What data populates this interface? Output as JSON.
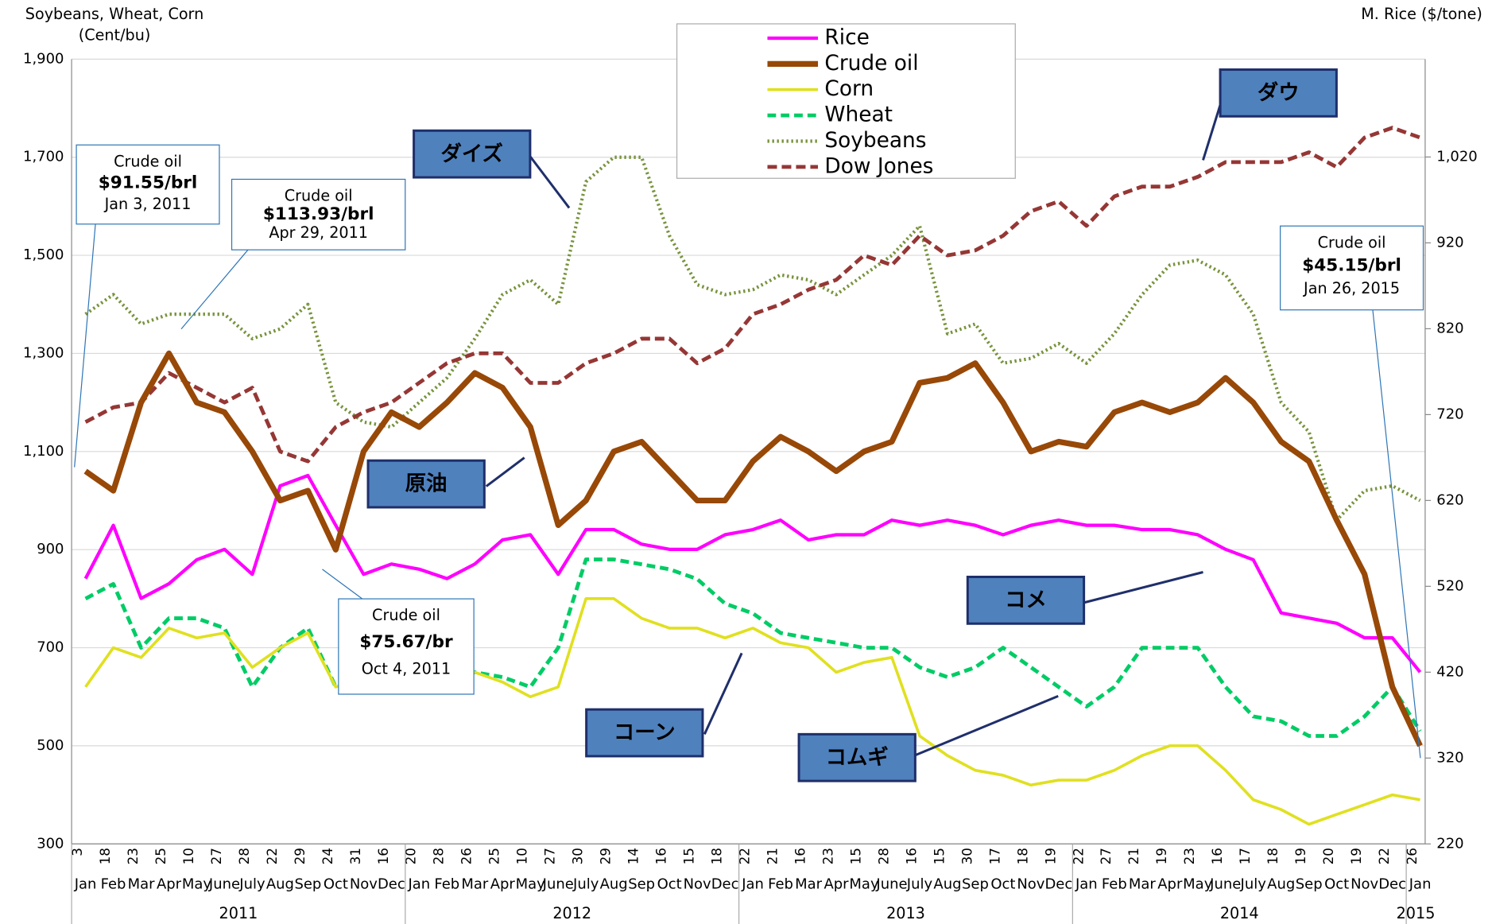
{
  "chart_data": {
    "type": "line",
    "y_label": [
      "Soybeans, Wheat, Corn",
      "(Cent/bu)"
    ],
    "y2_label": "M. Rice ($/tone)",
    "categories": [
      "Jan",
      "Feb",
      "Mar",
      "Apr",
      "May",
      "June",
      "July",
      "Aug",
      "Sep",
      "Oct",
      "Nov",
      "Dec",
      "Jan",
      "Feb",
      "Mar",
      "Apr",
      "May",
      "June",
      "July",
      "Aug",
      "Sep",
      "Oct",
      "Nov",
      "Dec",
      "Jan",
      "Feb",
      "Mar",
      "Apr",
      "May",
      "June",
      "July",
      "Aug",
      "Sep",
      "Oct",
      "Nov",
      "Dec",
      "Jan",
      "Feb",
      "Mar",
      "Apr",
      "May",
      "June",
      "July",
      "Aug",
      "Sep",
      "Oct",
      "Nov",
      "Dec",
      "Jan"
    ],
    "days": [
      "3",
      "18",
      "23",
      "25",
      "10",
      "27",
      "28",
      "22",
      "29",
      "24",
      "31",
      "16",
      "20",
      "28",
      "26",
      "25",
      "10",
      "27",
      "30",
      "29",
      "14",
      "16",
      "15",
      "18",
      "22",
      "21",
      "16",
      "23",
      "15",
      "28",
      "16",
      "15",
      "30",
      "17",
      "18",
      "19",
      "22",
      "27",
      "21",
      "19",
      "23",
      "16",
      "17",
      "18",
      "19",
      "20",
      "19",
      "22",
      "26"
    ],
    "years": [
      "2011",
      "2012",
      "2013",
      "2014",
      "2015"
    ],
    "ylim": [
      300,
      1900
    ],
    "yticks": [
      300,
      500,
      700,
      900,
      {
        "value": 1100,
        "label": "1,100"
      },
      {
        "value": 1300,
        "label": "1,300"
      },
      {
        "value": 1500,
        "label": "1,500"
      },
      {
        "value": 1700,
        "label": "1,700"
      },
      {
        "value": 1900,
        "label": "1,900"
      }
    ],
    "y2lim": [
      220,
      1134
    ],
    "y2ticks": [
      220,
      320,
      420,
      520,
      620,
      720,
      820,
      920,
      {
        "value": 1020,
        "label": "1,020"
      }
    ],
    "grid": true,
    "series": [
      {
        "name": "Rice",
        "color": "#ff00ff",
        "axis": "y2",
        "values": [
          529,
          591,
          506,
          523,
          551,
          563,
          534,
          637,
          649,
          591,
          534,
          546,
          540,
          529,
          546,
          574,
          580,
          534,
          586,
          586,
          569,
          563,
          563,
          580,
          586,
          597,
          574,
          580,
          580,
          597,
          591,
          597,
          591,
          580,
          591,
          597,
          591,
          591,
          586,
          586,
          580,
          563,
          551,
          489,
          483,
          477,
          460,
          460,
          420
        ]
      },
      {
        "name": "Crude oil",
        "color": "#984807",
        "values": [
          1060,
          1020,
          1200,
          1300,
          1200,
          1180,
          1100,
          1000,
          1020,
          900,
          1100,
          1180,
          1150,
          1200,
          1260,
          1230,
          1150,
          950,
          1000,
          1100,
          1120,
          1060,
          1000,
          1000,
          1080,
          1130,
          1100,
          1060,
          1100,
          1120,
          1240,
          1250,
          1280,
          1200,
          1100,
          1120,
          1110,
          1180,
          1200,
          1180,
          1200,
          1250,
          1200,
          1120,
          1080,
          960,
          850,
          620,
          500
        ]
      },
      {
        "name": "Corn",
        "color": "#e0e020",
        "values": [
          620,
          700,
          680,
          740,
          720,
          730,
          660,
          700,
          730,
          620,
          640,
          620,
          640,
          640,
          650,
          630,
          600,
          620,
          800,
          800,
          760,
          740,
          740,
          720,
          740,
          710,
          700,
          650,
          670,
          680,
          520,
          480,
          450,
          440,
          420,
          430,
          430,
          450,
          480,
          500,
          500,
          450,
          390,
          370,
          340,
          360,
          380,
          400,
          390
        ]
      },
      {
        "name": "Wheat",
        "color": "#00cc66",
        "values": [
          800,
          830,
          700,
          760,
          760,
          740,
          620,
          700,
          740,
          620,
          620,
          610,
          640,
          650,
          650,
          640,
          620,
          700,
          880,
          880,
          870,
          860,
          840,
          790,
          770,
          730,
          720,
          710,
          700,
          700,
          660,
          640,
          660,
          700,
          660,
          620,
          580,
          620,
          700,
          700,
          700,
          620,
          560,
          550,
          520,
          520,
          560,
          620,
          530
        ]
      },
      {
        "name": "Soybeans",
        "color": "#77933c",
        "values": [
          1380,
          1420,
          1360,
          1380,
          1380,
          1380,
          1330,
          1350,
          1400,
          1200,
          1160,
          1150,
          1200,
          1250,
          1330,
          1420,
          1450,
          1400,
          1650,
          1700,
          1700,
          1540,
          1440,
          1420,
          1430,
          1460,
          1450,
          1420,
          1460,
          1500,
          1560,
          1340,
          1360,
          1280,
          1290,
          1320,
          1280,
          1340,
          1420,
          1480,
          1490,
          1460,
          1380,
          1200,
          1140,
          960,
          1020,
          1030,
          1000
        ]
      },
      {
        "name": "Dow Jones",
        "color": "#953735",
        "values": [
          1160,
          1190,
          1200,
          1260,
          1230,
          1200,
          1230,
          1100,
          1080,
          1150,
          1180,
          1200,
          1240,
          1280,
          1300,
          1300,
          1240,
          1240,
          1280,
          1300,
          1330,
          1330,
          1280,
          1310,
          1380,
          1400,
          1430,
          1450,
          1500,
          1480,
          1540,
          1500,
          1510,
          1540,
          1590,
          1610,
          1560,
          1620,
          1640,
          1640,
          1660,
          1690,
          1690,
          1690,
          1710,
          1680,
          1740,
          1760,
          1740
        ]
      }
    ],
    "callouts": [
      {
        "lines": [
          "Crude oil",
          "$91.55/brl",
          "Jan 3, 2011"
        ]
      },
      {
        "lines": [
          "Crude oil",
          "$113.93/brl",
          "Apr 29, 2011"
        ]
      },
      {
        "lines": [
          "Crude oil",
          "$75.67/br",
          "Oct 4, 2011"
        ]
      },
      {
        "lines": [
          "Crude oil",
          "$45.15/brl",
          "Jan 26, 2015"
        ]
      }
    ],
    "labels": [
      "ダイズ",
      "ダウ",
      "原油",
      "コメ",
      "コーン",
      "コムギ"
    ]
  }
}
